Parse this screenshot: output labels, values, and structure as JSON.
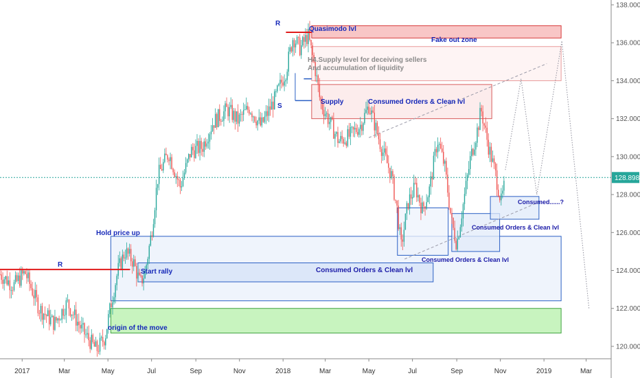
{
  "chart_data": {
    "type": "candlestick",
    "x_range": [
      "2016-12-01",
      "2019-04-05"
    ],
    "ylim": [
      119.6,
      138.0
    ],
    "x_ticks": [
      {
        "date": "2017-01-01",
        "label": "2017"
      },
      {
        "date": "2017-03-01",
        "label": "Mar"
      },
      {
        "date": "2017-05-01",
        "label": "May"
      },
      {
        "date": "2017-07-01",
        "label": "Jul"
      },
      {
        "date": "2017-09-01",
        "label": "Sep"
      },
      {
        "date": "2017-11-01",
        "label": "Nov"
      },
      {
        "date": "2018-01-01",
        "label": "2018"
      },
      {
        "date": "2018-03-01",
        "label": "Mar"
      },
      {
        "date": "2018-05-01",
        "label": "May"
      },
      {
        "date": "2018-07-01",
        "label": "Jul"
      },
      {
        "date": "2018-09-01",
        "label": "Sep"
      },
      {
        "date": "2018-11-01",
        "label": "Nov"
      },
      {
        "date": "2019-01-01",
        "label": "2019"
      },
      {
        "date": "2019-03-01",
        "label": "Mar"
      }
    ],
    "y_ticks": [
      {
        "value": 120,
        "label": "120.000"
      },
      {
        "value": 122,
        "label": "122.000"
      },
      {
        "value": 124,
        "label": "124.000"
      },
      {
        "value": 126,
        "label": "126.000"
      },
      {
        "value": 128,
        "label": "128.000"
      },
      {
        "value": 130,
        "label": "130.000"
      },
      {
        "value": 132,
        "label": "132.000"
      },
      {
        "value": 134,
        "label": "134.000"
      },
      {
        "value": 136,
        "label": "136.000"
      },
      {
        "value": 138,
        "label": "138.000"
      }
    ],
    "current_price": {
      "value": 128.898,
      "label": "128.898"
    },
    "price_path": [
      [
        "2016-12-01",
        123.8
      ],
      [
        "2016-12-20",
        123.2
      ],
      [
        "2017-01-05",
        123.9
      ],
      [
        "2017-01-25",
        122.0
      ],
      [
        "2017-02-15",
        121.2
      ],
      [
        "2017-03-05",
        122.3
      ],
      [
        "2017-03-25",
        120.9
      ],
      [
        "2017-04-15",
        119.8
      ],
      [
        "2017-04-27",
        120.5
      ],
      [
        "2017-05-05",
        122.2
      ],
      [
        "2017-05-15",
        124.0
      ],
      [
        "2017-05-25",
        125.0
      ],
      [
        "2017-06-05",
        124.5
      ],
      [
        "2017-06-15",
        123.3
      ],
      [
        "2017-06-22",
        123.9
      ],
      [
        "2017-07-01",
        126.0
      ],
      [
        "2017-07-10",
        129.0
      ],
      [
        "2017-07-25",
        130.2
      ],
      [
        "2017-08-10",
        128.4
      ],
      [
        "2017-08-25",
        130.3
      ],
      [
        "2017-09-10",
        130.5
      ],
      [
        "2017-09-25",
        131.8
      ],
      [
        "2017-10-15",
        132.5
      ],
      [
        "2017-10-30",
        131.9
      ],
      [
        "2017-11-15",
        132.6
      ],
      [
        "2017-12-01",
        131.6
      ],
      [
        "2017-12-20",
        133.0
      ],
      [
        "2018-01-05",
        134.5
      ],
      [
        "2018-01-15",
        136.3
      ],
      [
        "2018-01-25",
        135.7
      ],
      [
        "2018-02-05",
        136.4
      ],
      [
        "2018-02-15",
        134.6
      ],
      [
        "2018-02-22",
        132.9
      ],
      [
        "2018-03-05",
        132.0
      ],
      [
        "2018-03-20",
        130.8
      ],
      [
        "2018-04-05",
        131.1
      ],
      [
        "2018-04-20",
        131.7
      ],
      [
        "2018-05-01",
        132.7
      ],
      [
        "2018-05-10",
        131.6
      ],
      [
        "2018-05-20",
        130.3
      ],
      [
        "2018-06-01",
        129.1
      ],
      [
        "2018-06-10",
        127.1
      ],
      [
        "2018-06-15",
        125.2
      ],
      [
        "2018-06-25",
        127.6
      ],
      [
        "2018-07-05",
        128.4
      ],
      [
        "2018-07-15",
        127.2
      ],
      [
        "2018-07-25",
        128.3
      ],
      [
        "2018-08-05",
        130.9
      ],
      [
        "2018-08-15",
        129.5
      ],
      [
        "2018-08-25",
        126.5
      ],
      [
        "2018-09-01",
        125.4
      ],
      [
        "2018-09-10",
        127.5
      ],
      [
        "2018-09-20",
        129.9
      ],
      [
        "2018-10-01",
        131.6
      ],
      [
        "2018-10-05",
        132.5
      ],
      [
        "2018-10-15",
        130.6
      ],
      [
        "2018-10-25",
        129.1
      ],
      [
        "2018-11-02",
        127.6
      ],
      [
        "2018-11-08",
        128.7
      ]
    ],
    "zones": [
      {
        "name": "quasimodo-level",
        "x": [
          "2018-02-10",
          "2019-01-25"
        ],
        "y": [
          136.25,
          136.9
        ],
        "fill": "#f6b3b3",
        "stroke": "#d73a3a",
        "label": "Quasimodo lvl"
      },
      {
        "name": "fake-out-zone",
        "x": [
          "2018-02-10",
          "2019-01-25"
        ],
        "y": [
          134.0,
          135.8
        ],
        "fill": "#fdf0f0",
        "stroke": "#e89a9a",
        "label": "Fake out zone"
      },
      {
        "name": "supply-zone",
        "x": [
          "2018-02-10",
          "2018-10-20"
        ],
        "y": [
          132.0,
          133.8
        ],
        "fill": "#fbe5e5",
        "stroke": "#d75a5a",
        "label": "Supply"
      },
      {
        "name": "demand-wide-zone",
        "x": [
          "2017-05-05",
          "2019-01-25"
        ],
        "y": [
          122.4,
          125.8
        ],
        "fill": "#e9f0fb",
        "stroke": "#2a5fc4",
        "label": "Hold price up"
      },
      {
        "name": "start-rally-zone",
        "x": [
          "2017-06-12",
          "2018-07-30"
        ],
        "y": [
          123.4,
          124.4
        ],
        "fill": "#d6e3f8",
        "stroke": "#2a5fc4",
        "label": "Start rally"
      },
      {
        "name": "origin-zone",
        "x": [
          "2017-05-05",
          "2019-01-25"
        ],
        "y": [
          120.7,
          122.0
        ],
        "fill": "#b6f0a9",
        "stroke": "#3fa33f",
        "label": "origin of the move"
      },
      {
        "name": "consumed-zone-1",
        "x": [
          "2018-06-10",
          "2018-08-20"
        ],
        "y": [
          124.8,
          127.3
        ],
        "fill": "#eef3fc",
        "stroke": "#2a5fc4",
        "label": "Consumed Orders & Clean lvl"
      },
      {
        "name": "consumed-zone-2",
        "x": [
          "2018-08-25",
          "2018-10-31"
        ],
        "y": [
          125.0,
          127.0
        ],
        "fill": "#e2ebfa",
        "stroke": "#2a5fc4",
        "label": "Consumed Orders & Clean lvl"
      },
      {
        "name": "consumed-zone-3",
        "x": [
          "2018-10-18",
          "2018-12-25"
        ],
        "y": [
          126.7,
          127.9
        ],
        "fill": "#dfe9fa",
        "stroke": "#2a5fc4",
        "label": "Consumed......?"
      }
    ],
    "labels": {
      "r_left": "R",
      "r_top": "R",
      "s_top": "S",
      "hold_price": "Hold price up",
      "start_rally": "Start rally",
      "origin": "origin of the move",
      "consumed_main": "Consumed Orders & Clean lvl",
      "consumed_1": "Consumed Orders & Clean lvl",
      "consumed_2": "Consumed Orders & Clean lvl",
      "consumed_3": "Consumed......?",
      "supply": "Supply",
      "supply_consumed": "Consumed Orders & Clean lvl",
      "quasimodo": "Quasimodo lvl",
      "fake_out": "Fake out zone",
      "h4_line1": "H4.Supply level for deceiving sellers",
      "h4_line2": "And accumulation of liquidity"
    },
    "red_levels": [
      {
        "name": "r-left-level",
        "x": [
          "2016-12-01",
          "2017-06-01"
        ],
        "y": 124.05
      },
      {
        "name": "r-top-level",
        "x": [
          "2018-01-05",
          "2018-02-10"
        ],
        "y": 136.55
      }
    ],
    "blue_levels": [
      {
        "name": "s-level",
        "x": [
          "2018-01-18",
          "2018-02-10"
        ],
        "y": 132.95
      },
      {
        "name": "h4-level",
        "x": [
          "2018-01-30",
          "2018-02-10"
        ],
        "y": 134.1
      }
    ],
    "trend_lines": [
      {
        "name": "upper-trend-line",
        "from": [
          "2018-05-01",
          131.0
        ],
        "to": [
          "2019-01-05",
          134.9
        ]
      },
      {
        "name": "lower-trend-line",
        "from": [
          "2018-06-20",
          124.6
        ],
        "to": [
          "2018-12-25",
          127.6
        ]
      }
    ],
    "projection_path": [
      [
        "2018-11-08",
        129.3
      ],
      [
        "2018-11-30",
        134.1
      ],
      [
        "2018-12-22",
        128.0
      ],
      [
        "2019-01-26",
        136.1
      ],
      [
        "2019-03-05",
        122.0
      ]
    ],
    "colors": {
      "up": "#26a69a",
      "down": "#ef5350",
      "price_line": "#26a69a",
      "price_tag": "#26a69a",
      "axis": "#555555",
      "red_level": "#e01b1b",
      "blue_level": "#2a5fc4"
    }
  }
}
